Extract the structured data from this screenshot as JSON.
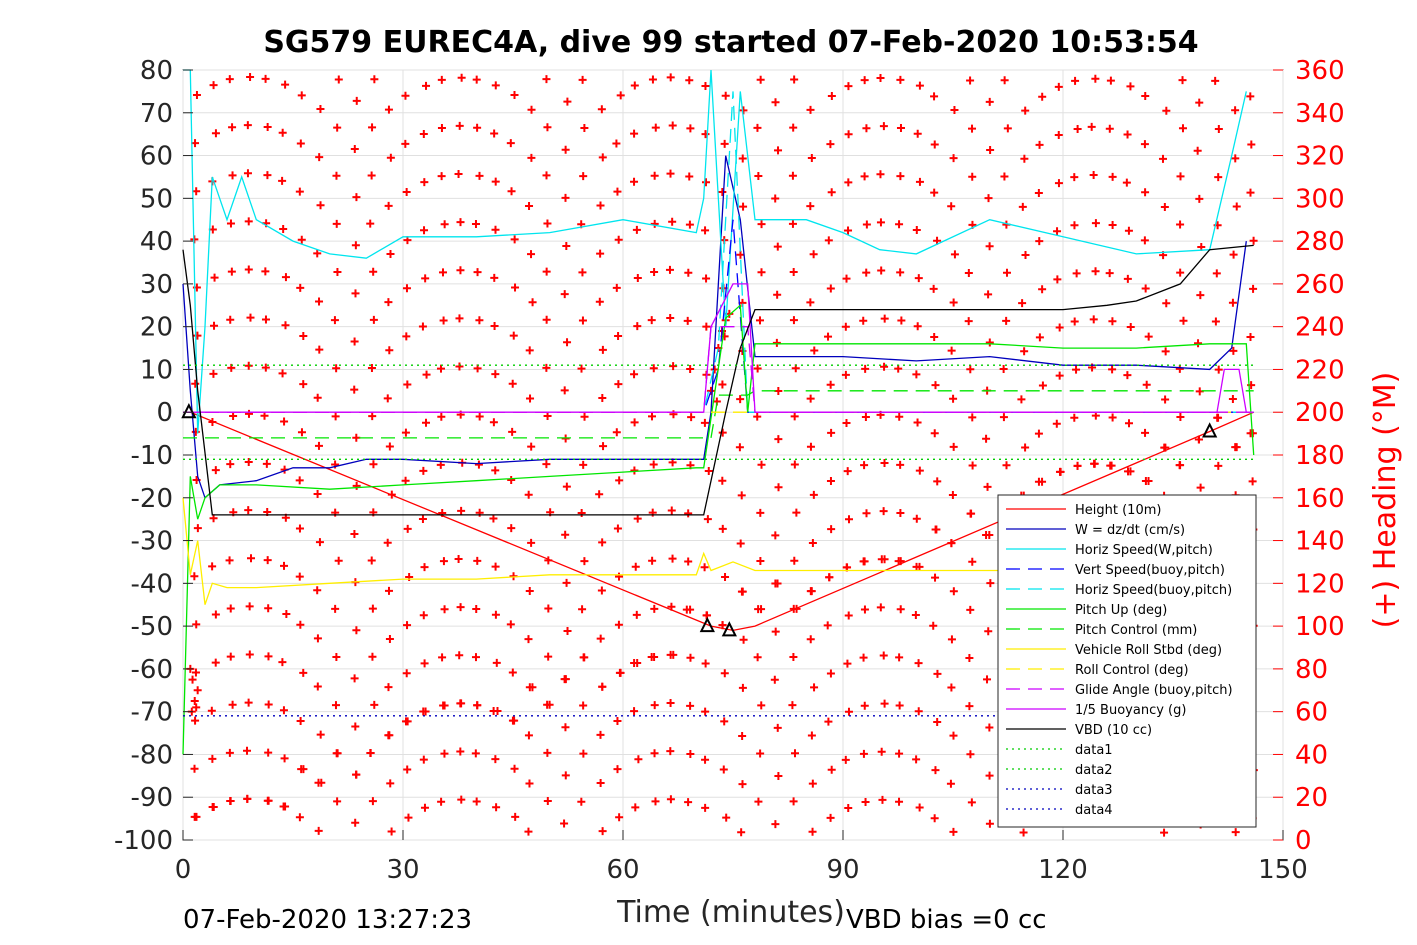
{
  "colors": {
    "height": "#ff0000",
    "w": "#0000bd",
    "horiz_speed": "#00e5ee",
    "vert_speed_buoy": "#0000ff",
    "pitch": "#00e600",
    "roll": "#ffee00",
    "glide": "#cc00ff",
    "buoyancy": "#cc00ff",
    "vbd": "#000000",
    "heading": "#ff0000"
  },
  "chart_data": {
    "type": "line",
    "title": "SG579 EUREC4A, dive 99 started 07-Feb-2020 10:53:54",
    "xlabel": "Time (minutes)",
    "ylabel_right": "(+) Heading (°M)",
    "xlim": [
      0,
      150
    ],
    "ylim_left": [
      -100,
      80
    ],
    "ylim_right": [
      0,
      360
    ],
    "grid": true,
    "legend_position": "bottom-right",
    "x_ticks": [
      "0",
      "30",
      "60",
      "90",
      "120",
      "150"
    ],
    "y_left_ticks": [
      "80",
      "70",
      "60",
      "50",
      "40",
      "30",
      "20",
      "10",
      "0",
      "-10",
      "-20",
      "-30",
      "-40",
      "-50",
      "-60",
      "-70",
      "-80",
      "-90",
      "-100"
    ],
    "y_right_ticks": [
      "360",
      "340",
      "320",
      "300",
      "280",
      "260",
      "240",
      "220",
      "200",
      "180",
      "160",
      "140",
      "120",
      "100",
      "80",
      "60",
      "40",
      "20",
      "0"
    ],
    "footer_left": "07-Feb-2020 13:27:23",
    "footer_right": "VBD bias =0 cc",
    "reference_lines": [
      {
        "name": "data1",
        "y": 11,
        "color": "#00cc00"
      },
      {
        "name": "data2",
        "y": -11,
        "color": "#00cc00"
      },
      {
        "name": "data3",
        "y": -71,
        "color": "#0000bd"
      },
      {
        "name": "data4",
        "y": -71,
        "color": "#0000bd"
      }
    ],
    "series": [
      {
        "name": "Height (10m)",
        "style": "solid",
        "color": "#ff0000",
        "x": [
          0,
          1,
          72,
          75,
          78,
          140,
          146
        ],
        "y": [
          0,
          0,
          -50,
          -51,
          -50,
          -4.5,
          0
        ]
      },
      {
        "name": "W = dz/dt (cm/s)",
        "style": "solid",
        "color": "#0000bd",
        "x": [
          0,
          1,
          2,
          3,
          5,
          10,
          15,
          20,
          25,
          30,
          40,
          50,
          60,
          71,
          72,
          74,
          76,
          78,
          90,
          100,
          110,
          120,
          130,
          140,
          143,
          145
        ],
        "y": [
          30,
          5,
          -15,
          -20,
          -17,
          -16,
          -13,
          -13,
          -11,
          -11,
          -12,
          -11,
          -11,
          -11,
          0,
          60,
          45,
          13,
          13,
          12,
          13,
          11,
          11,
          10,
          15,
          40
        ]
      },
      {
        "name": "Horiz Speed(W,pitch)",
        "style": "solid",
        "color": "#00e5ee",
        "x": [
          0,
          1,
          2,
          3,
          4,
          6,
          8,
          10,
          15,
          20,
          25,
          30,
          40,
          50,
          60,
          70,
          71,
          72,
          74,
          76,
          78,
          85,
          90,
          95,
          100,
          110,
          120,
          130,
          140,
          143,
          145
        ],
        "y": [
          80,
          80,
          -5,
          20,
          55,
          45,
          55,
          45,
          40,
          37,
          36,
          41,
          41,
          42,
          45,
          42,
          50,
          80,
          20,
          75,
          45,
          45,
          42,
          38,
          37,
          45,
          41,
          37,
          38,
          60,
          75
        ]
      },
      {
        "name": "Vert Speed(buoy,pitch)",
        "style": "dashed",
        "color": "#0000ff",
        "x": [
          0,
          1,
          71,
          73,
          75,
          77,
          146
        ],
        "y": [
          0,
          0,
          0,
          10,
          45,
          0,
          0
        ]
      },
      {
        "name": "Horiz Speed(buoy,pitch)",
        "style": "dashed",
        "color": "#00e5ee",
        "x": [
          0,
          1,
          71,
          73,
          75,
          77,
          146
        ],
        "y": [
          0,
          0,
          0,
          15,
          75,
          0,
          0
        ]
      },
      {
        "name": "Pitch Up (deg)",
        "style": "solid",
        "color": "#00e600",
        "x": [
          0,
          1,
          2,
          3,
          5,
          10,
          20,
          30,
          40,
          50,
          60,
          70,
          71,
          74,
          76,
          77,
          78,
          85,
          90,
          100,
          110,
          120,
          130,
          140,
          145,
          146
        ],
        "y": [
          -80,
          -15,
          -25,
          -20,
          -17,
          -17,
          -18,
          -17,
          -16,
          -15,
          -14,
          -13,
          -13,
          22,
          25,
          0,
          16,
          16,
          16,
          16,
          16,
          15,
          15,
          16,
          16,
          -10
        ]
      },
      {
        "name": "Pitch Control (mm)",
        "style": "dashed",
        "color": "#00e600",
        "x": [
          0,
          1,
          72,
          73,
          77,
          78,
          146
        ],
        "y": [
          -6,
          -6,
          -6,
          4,
          4,
          5,
          5
        ]
      },
      {
        "name": "Vehicle Roll Stbd (deg)",
        "style": "solid",
        "color": "#ffee00",
        "x": [
          0,
          1,
          2,
          3,
          4,
          6,
          10,
          20,
          30,
          40,
          50,
          60,
          70,
          71,
          72,
          75,
          78,
          85,
          90,
          100,
          110,
          113
        ],
        "y": [
          -20,
          -38,
          -30,
          -45,
          -40,
          -41,
          -41,
          -40,
          -39,
          -39,
          -38,
          -38,
          -38,
          -33,
          -37,
          -35,
          -37,
          -37,
          -37,
          -37,
          -37,
          -37
        ]
      },
      {
        "name": "Roll Control (deg)",
        "style": "dashed",
        "color": "#ffee00",
        "x": [
          0,
          146
        ],
        "y": [
          0,
          0
        ]
      },
      {
        "name": "Glide Angle (buoy,pitch)",
        "style": "dashed",
        "color": "#cc00ff",
        "x": [
          0,
          71,
          72,
          77,
          78,
          146
        ],
        "y": [
          0,
          0,
          20,
          20,
          0,
          0
        ]
      },
      {
        "name": "1/5 Buoyancy (g)",
        "style": "solid",
        "color": "#cc00ff",
        "x": [
          0,
          71,
          72,
          75,
          77,
          78,
          141,
          142,
          144,
          145,
          146
        ],
        "y": [
          0,
          0,
          20,
          30,
          30,
          0,
          0,
          10,
          10,
          0,
          0
        ]
      },
      {
        "name": "VBD (10 cc)",
        "style": "solid",
        "color": "#000000",
        "x": [
          0,
          1,
          2,
          4,
          10,
          70,
          71,
          74,
          76,
          78,
          80,
          100,
          120,
          126,
          130,
          136,
          140,
          146
        ],
        "y": [
          38,
          25,
          5,
          -24,
          -24,
          -24,
          -24,
          0,
          15,
          24,
          24,
          24,
          24,
          25,
          26,
          30,
          38,
          39
        ]
      },
      {
        "name": "data1",
        "style": "dotted",
        "color": "#00cc00",
        "x": [
          0,
          146
        ],
        "y": [
          11,
          11
        ]
      },
      {
        "name": "data2",
        "style": "dotted",
        "color": "#00cc00",
        "x": [
          0,
          146
        ],
        "y": [
          -11,
          -11
        ]
      },
      {
        "name": "data3",
        "style": "dotted",
        "color": "#0000bd",
        "x": [
          0,
          146
        ],
        "y": [
          -71,
          -71
        ]
      },
      {
        "name": "data4",
        "style": "dotted",
        "color": "#0000bd",
        "x": [
          0,
          146
        ],
        "y": [
          -71,
          -71
        ]
      }
    ],
    "heading_note": "Heading (+) markers: approximately 16 red plus markers per column, drawn every ~2.4 minutes from 0 to 146 minutes, values scattered across 0-360 (°M).",
    "markers": {
      "triangles": [
        {
          "x": 0.8,
          "y": 0
        },
        {
          "x": 71.5,
          "y": -50
        },
        {
          "x": 74.5,
          "y": -51
        },
        {
          "x": 140,
          "y": -4.5
        }
      ]
    }
  }
}
